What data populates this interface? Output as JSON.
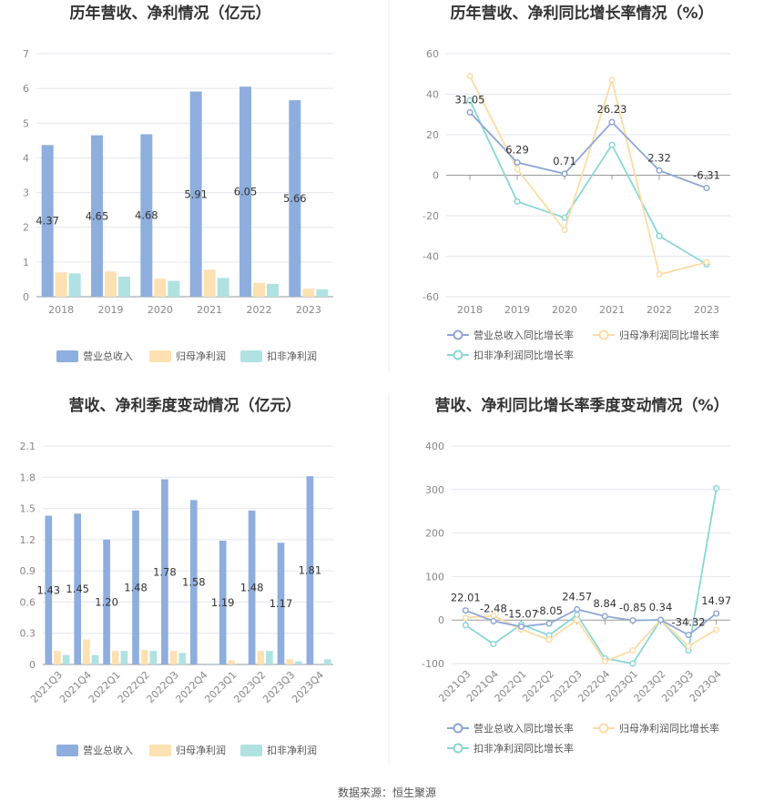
{
  "source": "数据来源：恒生聚源",
  "colors": {
    "revenue": "#8eaedd",
    "net_profit": "#fde1b2",
    "deducted_profit": "#b0e2e2",
    "revenue_line": "#8ea6d4",
    "net_profit_line": "#fcdca5",
    "deducted_profit_line": "#8ad6d6"
  },
  "chart_data": [
    {
      "type": "bar",
      "title": "历年营收、净利情况（亿元）",
      "categories": [
        "2018",
        "2019",
        "2020",
        "2021",
        "2022",
        "2023"
      ],
      "ylim": [
        0,
        7
      ],
      "yticks": [
        0,
        1,
        2,
        3,
        4,
        5,
        6,
        7
      ],
      "series": [
        {
          "name": "营业总收入",
          "values": [
            4.37,
            4.65,
            4.68,
            5.91,
            6.05,
            5.66
          ],
          "labels": [
            "4.37",
            "4.65",
            "4.68",
            "5.91",
            "6.05",
            "5.66"
          ]
        },
        {
          "name": "归母净利润",
          "values": [
            0.7,
            0.73,
            0.52,
            0.78,
            0.4,
            0.23
          ]
        },
        {
          "name": "扣非净利润",
          "values": [
            0.67,
            0.58,
            0.46,
            0.54,
            0.37,
            0.21
          ]
        }
      ],
      "legend": "bottom"
    },
    {
      "type": "line",
      "title": "历年营收、净利同比增长率情况（%）",
      "categories": [
        "2018",
        "2019",
        "2020",
        "2021",
        "2022",
        "2023"
      ],
      "ylim": [
        -60,
        60
      ],
      "yticks": [
        -60,
        -40,
        -20,
        0,
        20,
        40,
        60
      ],
      "series": [
        {
          "name": "营业总收入同比增长率",
          "values": [
            31.05,
            6.29,
            0.71,
            26.23,
            2.32,
            -6.31
          ],
          "labels": [
            "31.05",
            "6.29",
            "0.71",
            "26.23",
            "2.32",
            "-6.31"
          ]
        },
        {
          "name": "归母净利润同比增长率",
          "values": [
            49,
            3,
            -27,
            47,
            -49,
            -43
          ]
        },
        {
          "name": "扣非净利润同比增长率",
          "values": [
            37,
            -13,
            -21,
            15,
            -30,
            -44
          ]
        }
      ],
      "legend": "bottom"
    },
    {
      "type": "bar",
      "title": "营收、净利季度变动情况（亿元）",
      "categories": [
        "2021Q3",
        "2021Q4",
        "2022Q1",
        "2022Q2",
        "2022Q3",
        "2022Q4",
        "2023Q1",
        "2023Q2",
        "2023Q3",
        "2023Q4"
      ],
      "ylim": [
        0,
        2.1
      ],
      "yticks": [
        "0",
        "0.3",
        "0.6",
        "0.9",
        "1.2",
        "1.5",
        "1.8",
        "2.1"
      ],
      "series": [
        {
          "name": "营业总收入",
          "values": [
            1.43,
            1.45,
            1.2,
            1.48,
            1.78,
            1.58,
            1.19,
            1.48,
            1.17,
            1.81
          ],
          "labels": [
            "1.43",
            "1.45",
            "1.20",
            "1.48",
            "1.78",
            "1.58",
            "1.19",
            "1.48",
            "1.17",
            "1.81"
          ]
        },
        {
          "name": "归母净利润",
          "values": [
            0.13,
            0.24,
            0.13,
            0.14,
            0.13,
            0.0,
            0.04,
            0.13,
            0.05,
            0.0
          ]
        },
        {
          "name": "扣非净利润",
          "values": [
            0.09,
            0.09,
            0.13,
            0.13,
            0.11,
            0.01,
            0.0,
            0.13,
            0.03,
            0.05
          ]
        }
      ],
      "legend": "bottom"
    },
    {
      "type": "line",
      "title": "营收、净利同比增长率季度变动情况（%）",
      "categories": [
        "2021Q3",
        "2021Q4",
        "2022Q1",
        "2022Q2",
        "2022Q3",
        "2022Q4",
        "2023Q1",
        "2023Q2",
        "2023Q3",
        "2023Q4"
      ],
      "ylim": [
        -100,
        400
      ],
      "yticks": [
        -100,
        0,
        100,
        200,
        300,
        400
      ],
      "series": [
        {
          "name": "营业总收入同比增长率",
          "values": [
            22.01,
            -2.48,
            -15.07,
            -8.05,
            24.57,
            8.84,
            -0.85,
            0.34,
            -34.32,
            14.97
          ],
          "labels": [
            "22.01",
            "-2.48",
            "-15.07",
            "-8.05",
            "24.57",
            "8.84",
            "-0.85",
            "0.34",
            "-34.32",
            "14.97"
          ]
        },
        {
          "name": "归母净利润同比增长率",
          "values": [
            5,
            10,
            -22,
            -45,
            0,
            -95,
            -70,
            0,
            -60,
            -22
          ]
        },
        {
          "name": "扣非净利润同比增长率",
          "values": [
            -12,
            -55,
            -10,
            -35,
            12,
            -88,
            -100,
            0,
            -70,
            303
          ]
        }
      ],
      "legend": "bottom"
    }
  ]
}
